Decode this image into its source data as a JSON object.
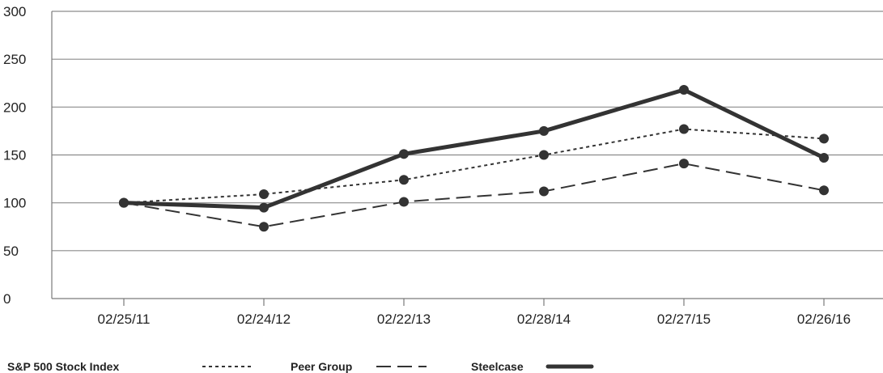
{
  "chart_data": {
    "type": "line",
    "title": "",
    "xlabel": "",
    "ylabel": "",
    "categories": [
      "02/25/11",
      "02/24/12",
      "02/22/13",
      "02/28/14",
      "02/27/15",
      "02/26/16"
    ],
    "y_ticks": [
      0,
      50,
      100,
      150,
      200,
      250,
      300
    ],
    "ylim": [
      0,
      300
    ],
    "grid": "horizontal",
    "legend_position": "bottom-left",
    "series": [
      {
        "name": "S&P 500 Stock Index",
        "style": "dotted",
        "color": "#333333",
        "values": [
          100,
          109,
          124,
          150,
          177,
          167
        ]
      },
      {
        "name": "Peer Group",
        "style": "dashed",
        "color": "#333333",
        "values": [
          100,
          75,
          101,
          112,
          141,
          113
        ]
      },
      {
        "name": "Steelcase",
        "style": "solid-thick",
        "color": "#333333",
        "values": [
          100,
          95,
          151,
          175,
          218,
          147
        ]
      }
    ]
  }
}
